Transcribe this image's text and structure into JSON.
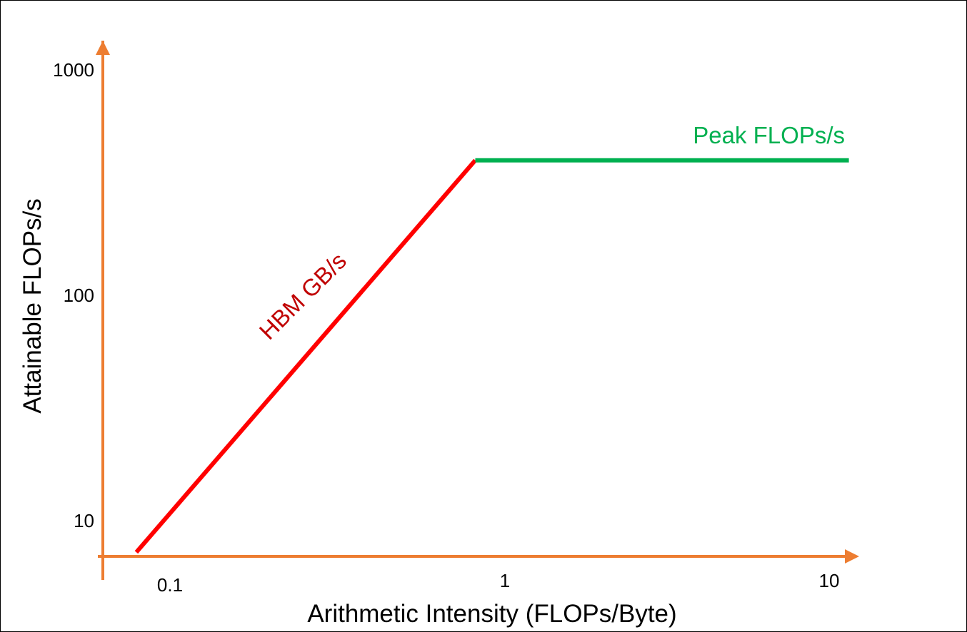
{
  "chart_data": {
    "type": "line",
    "title": "",
    "xlabel": "Arithmetic Intensity (FLOPs/Byte)",
    "ylabel": "Attainable FLOPs/s",
    "xscale": "log",
    "yscale": "log",
    "xlim": [
      0.073,
      11.5
    ],
    "ylim": [
      7.2,
      1250
    ],
    "x_ticks": [
      {
        "value": 0.1,
        "label": "0.1"
      },
      {
        "value": 1,
        "label": "1"
      },
      {
        "value": 10,
        "label": "10"
      }
    ],
    "y_ticks": [
      {
        "value": 10,
        "label": "10"
      },
      {
        "value": 100,
        "label": "100"
      },
      {
        "value": 1000,
        "label": "1000"
      }
    ],
    "grid": false,
    "axis_color": "#ED7D31",
    "series": [
      {
        "name": "HBM GB/s",
        "color": "#FF0000",
        "label_color": "#C00000",
        "x": [
          0.073,
          0.81
        ],
        "y": [
          7.3,
          400
        ]
      },
      {
        "name": "Peak FLOPs/s",
        "color": "#00B050",
        "label_color": "#00B050",
        "x": [
          0.81,
          11.5
        ],
        "y": [
          400,
          400
        ]
      }
    ]
  }
}
